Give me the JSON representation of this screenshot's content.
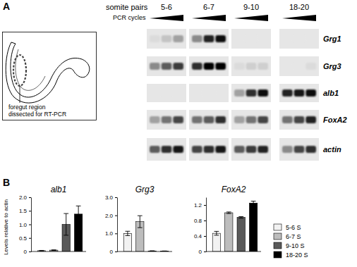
{
  "panel_labels": [
    "A",
    "B"
  ],
  "schematic": {
    "label": [
      "foregut region",
      "dissected for RT-PCR"
    ]
  },
  "gel": {
    "header": "somite pairs",
    "subheader": "PCR cycles",
    "groups": [
      "5-6",
      "6-7",
      "9-10",
      "18-20"
    ],
    "rows": [
      {
        "gene": "Grg1",
        "band_intensity": [
          0.05,
          0.15,
          0.3,
          0.4,
          0.85,
          0.95,
          0,
          0,
          0,
          0,
          0,
          0
        ]
      },
      {
        "gene": "Grg3",
        "band_intensity": [
          0.4,
          0.6,
          0.75,
          0.8,
          1,
          1,
          0.05,
          0.1,
          0.1,
          0,
          0,
          0.05
        ]
      },
      {
        "gene": "alb1",
        "band_intensity": [
          0,
          0,
          0,
          0,
          0,
          0,
          0.3,
          0.8,
          0.95,
          0.85,
          0.9,
          0.95
        ]
      },
      {
        "gene": "FoxA2",
        "band_intensity": [
          0.3,
          0.5,
          0.7,
          0.5,
          0.6,
          0.8,
          0.3,
          0.5,
          0.7,
          0.5,
          0.7,
          0.85
        ]
      },
      {
        "gene": "actin",
        "band_intensity": [
          0.6,
          0.8,
          0.9,
          0.7,
          0.8,
          0.9,
          0.6,
          0.75,
          0.85,
          0.4,
          0.7,
          0.8
        ]
      }
    ]
  },
  "chart_data": [
    {
      "type": "bar",
      "title": "alb1",
      "y_label": "Levels relative to actin",
      "categories": [
        "5-6 S",
        "6-7 S",
        "9-10 S",
        "18-20 S"
      ],
      "values": [
        0.03,
        0.05,
        1.0,
        1.38
      ],
      "errors": [
        0.01,
        0.01,
        0.4,
        0.3
      ],
      "colors": [
        "#f2f2f2",
        "#bdbdbd",
        "#5a5a5a",
        "#000000"
      ],
      "ylim": [
        0,
        2
      ],
      "yticks": [
        0,
        0.5,
        {
          "value": 1,
          "label": "1.0"
        },
        1.5,
        {
          "value": 2,
          "label": "2.0"
        }
      ],
      "tick_labels": "y"
    },
    {
      "type": "bar",
      "title": "Grg3",
      "categories": [
        "5-6 S",
        "6-7 S",
        "9-10 S",
        "18-20 S"
      ],
      "values": [
        1.0,
        1.65,
        0.03,
        0.02
      ],
      "errors": [
        0.12,
        0.33,
        0.01,
        0.01
      ],
      "colors": [
        "#f2f2f2",
        "#bdbdbd",
        "#5a5a5a",
        "#000000"
      ],
      "ylim": [
        0,
        3
      ],
      "yticks": [
        0,
        {
          "value": 1,
          "label": "1.0"
        },
        {
          "value": 2,
          "label": "2.0"
        },
        {
          "value": 3,
          "label": "3.0"
        }
      ],
      "tick_labels": "y"
    },
    {
      "type": "bar",
      "title": "FoxA2",
      "categories": [
        "5-6 S",
        "6-7 S",
        "9-10 S",
        "18-20 S"
      ],
      "values": [
        0.47,
        1.0,
        0.88,
        1.25
      ],
      "errors": [
        0.05,
        0.02,
        0.02,
        0.05
      ],
      "colors": [
        "#f2f2f2",
        "#bdbdbd",
        "#5a5a5a",
        "#000000"
      ],
      "ylim": [
        0,
        1.4
      ],
      "yticks": [
        0,
        0.4,
        0.8,
        1.2
      ],
      "tick_labels": "y",
      "legend": "right"
    }
  ]
}
